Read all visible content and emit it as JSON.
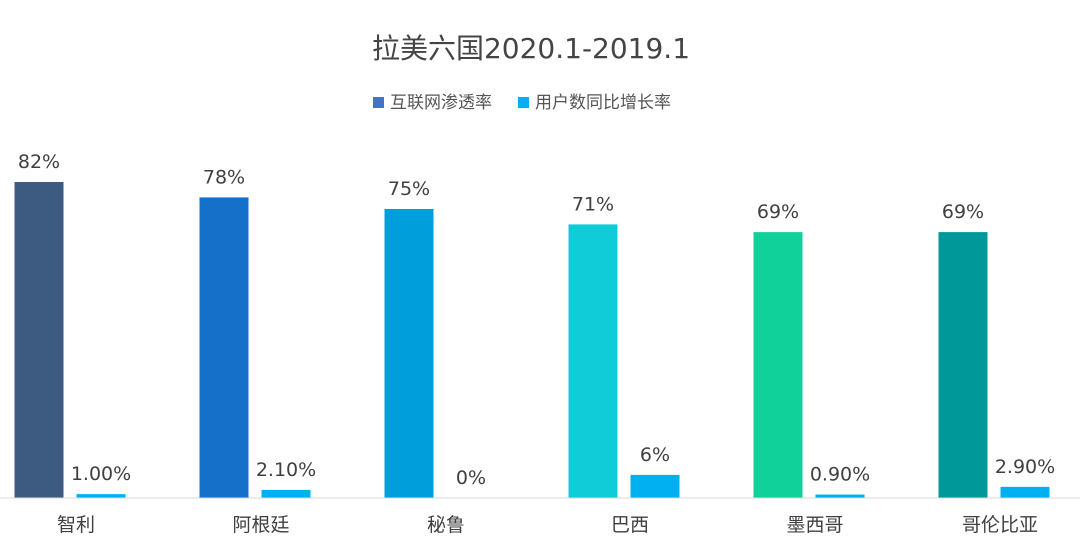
{
  "chart_data": {
    "type": "bar",
    "title": "拉美六国2020.1-2019.1",
    "categories": [
      "智利",
      "阿根廷",
      "秘鲁",
      "巴西",
      "墨西哥",
      "哥伦比亚"
    ],
    "series": [
      {
        "name": "互联网渗透率",
        "legend_color": "#4472C4",
        "values": [
          82,
          78,
          75,
          71,
          69,
          69
        ],
        "labels": [
          "82%",
          "78%",
          "75%",
          "71%",
          "69%",
          "69%"
        ],
        "bar_colors": [
          "#3D5A80",
          "#1470C8",
          "#009FDC",
          "#10CCD8",
          "#11D19A",
          "#009898"
        ]
      },
      {
        "name": "用户数同比增长率",
        "legend_color": "#00B0F0",
        "values": [
          1.0,
          2.1,
          0,
          6,
          0.9,
          2.9
        ],
        "labels": [
          "1.00%",
          "2.10%",
          "0%",
          "6%",
          "0.90%",
          "2.90%"
        ],
        "bar_colors": [
          "#00B0F0",
          "#00B0F0",
          "#00B0F0",
          "#00B0F0",
          "#00B0F0",
          "#00B0F0"
        ]
      }
    ],
    "ylim": [
      0,
      82
    ],
    "grid": false,
    "legend_position": "top-center",
    "xlabel": "",
    "ylabel": ""
  }
}
